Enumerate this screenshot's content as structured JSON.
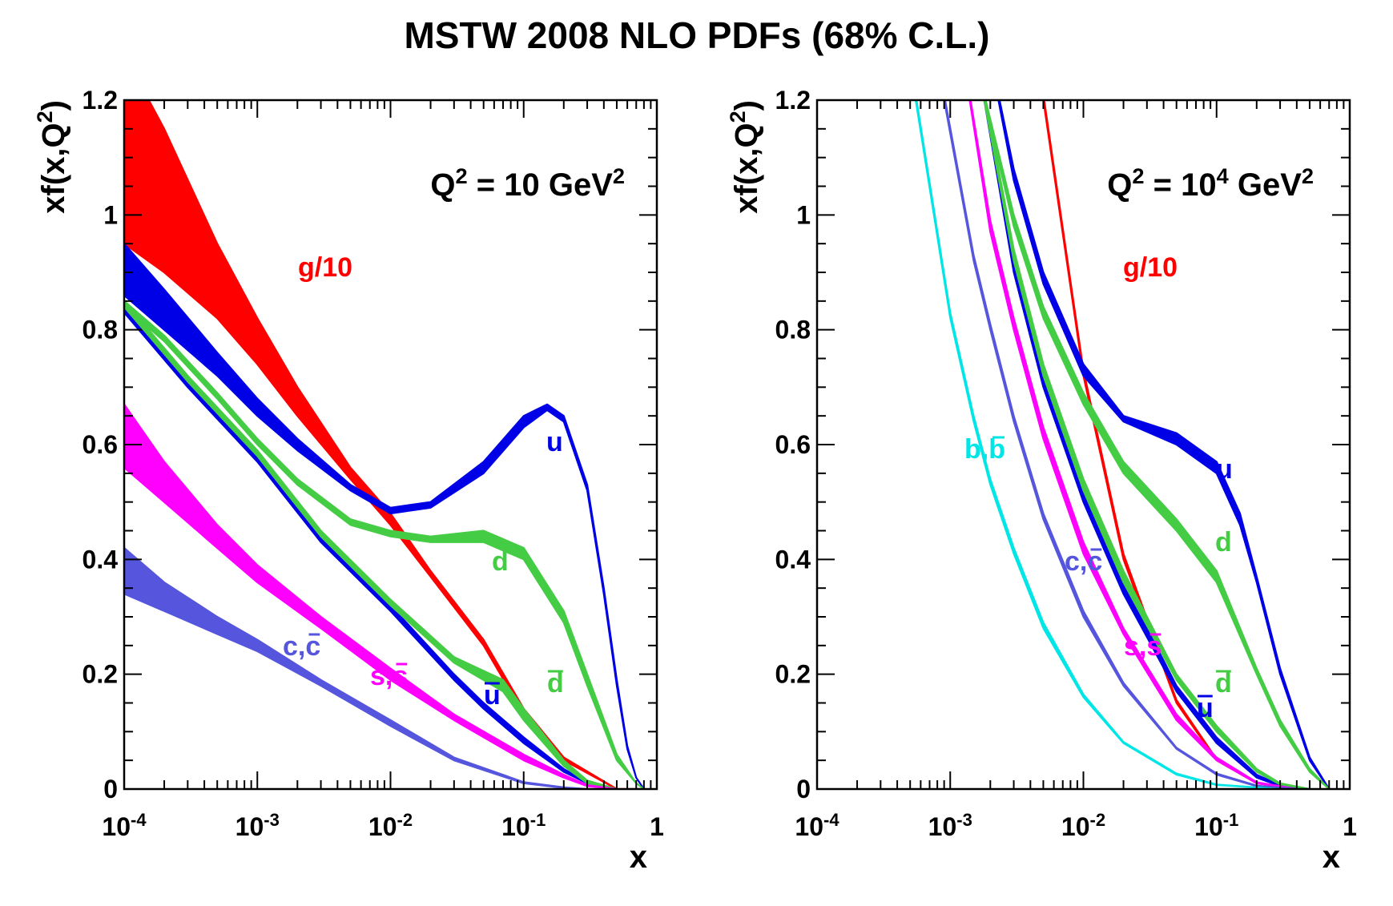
{
  "title": "MSTW 2008 NLO PDFs (68% C.L.)",
  "colors": {
    "g": "#ff0000",
    "u": "#0000e6",
    "d": "#44cc44",
    "ubar": "#0000e6",
    "dbar": "#44cc44",
    "s": "#ff00ff",
    "c": "#5555dd",
    "b": "#00e6e6"
  },
  "chart_data": [
    {
      "type": "line",
      "title": "",
      "annotation": {
        "main": "Q",
        "sup1": "2",
        "mid": " = 10 GeV",
        "sup2": "2"
      },
      "xlabel": "x",
      "ylabel": {
        "main": "xf(x,Q",
        "sup": "2",
        "end": ")"
      },
      "xscale": "log",
      "xlim": [
        0.0001,
        1
      ],
      "ylim": [
        0,
        1.2
      ],
      "x_ticks": [
        {
          "base": "10",
          "exp": "-4"
        },
        {
          "base": "10",
          "exp": "-3"
        },
        {
          "base": "10",
          "exp": "-2"
        },
        {
          "base": "10",
          "exp": "-1"
        },
        {
          "base": "1",
          "exp": ""
        }
      ],
      "y_ticks": [
        "0",
        "0.2",
        "0.4",
        "0.6",
        "0.8",
        "1",
        "1.2"
      ],
      "series": [
        {
          "key": "g",
          "name": "g/10",
          "label": {
            "text": "g/10",
            "bar": ""
          },
          "x": [
            0.0001,
            0.0002,
            0.0005,
            0.001,
            0.002,
            0.005,
            0.01,
            0.02,
            0.05,
            0.1,
            0.2,
            0.5,
            0.8
          ],
          "lo": [
            0.95,
            0.9,
            0.82,
            0.74,
            0.65,
            0.54,
            0.46,
            0.37,
            0.25,
            0.13,
            0.05,
            0.0,
            0.0
          ],
          "hi": [
            1.28,
            1.15,
            0.95,
            0.82,
            0.7,
            0.56,
            0.48,
            0.38,
            0.26,
            0.14,
            0.055,
            0.0,
            0.0
          ]
        },
        {
          "key": "u",
          "name": "u",
          "label": {
            "text": "u",
            "bar": ""
          },
          "x": [
            0.0001,
            0.0002,
            0.0005,
            0.001,
            0.002,
            0.005,
            0.01,
            0.02,
            0.05,
            0.1,
            0.15,
            0.2,
            0.3,
            0.4,
            0.5,
            0.6,
            0.7,
            0.8
          ],
          "lo": [
            0.86,
            0.8,
            0.72,
            0.65,
            0.59,
            0.52,
            0.48,
            0.49,
            0.55,
            0.63,
            0.66,
            0.64,
            0.52,
            0.34,
            0.18,
            0.07,
            0.02,
            0.0
          ],
          "hi": [
            0.95,
            0.87,
            0.76,
            0.68,
            0.61,
            0.53,
            0.49,
            0.5,
            0.57,
            0.65,
            0.67,
            0.65,
            0.53,
            0.35,
            0.19,
            0.075,
            0.02,
            0.0
          ]
        },
        {
          "key": "d",
          "name": "d",
          "label": {
            "text": "d",
            "bar": ""
          },
          "x": [
            0.0001,
            0.0002,
            0.0005,
            0.001,
            0.002,
            0.005,
            0.01,
            0.02,
            0.05,
            0.1,
            0.2,
            0.3,
            0.5,
            0.7,
            0.8
          ],
          "lo": [
            0.84,
            0.78,
            0.68,
            0.6,
            0.53,
            0.46,
            0.44,
            0.43,
            0.43,
            0.4,
            0.29,
            0.18,
            0.05,
            0.01,
            0.0
          ],
          "hi": [
            0.85,
            0.79,
            0.69,
            0.61,
            0.54,
            0.47,
            0.45,
            0.44,
            0.45,
            0.42,
            0.31,
            0.2,
            0.06,
            0.01,
            0.0
          ]
        },
        {
          "key": "ubar",
          "name": "u",
          "label": {
            "text": "u",
            "bar": "u"
          },
          "x": [
            0.0001,
            0.0003,
            0.001,
            0.003,
            0.01,
            0.03,
            0.05,
            0.1,
            0.2,
            0.3,
            0.5
          ],
          "lo": [
            0.83,
            0.7,
            0.57,
            0.43,
            0.31,
            0.19,
            0.14,
            0.08,
            0.03,
            0.01,
            0.0
          ],
          "hi": [
            0.84,
            0.71,
            0.58,
            0.44,
            0.32,
            0.2,
            0.15,
            0.09,
            0.035,
            0.012,
            0.0
          ]
        },
        {
          "key": "dbar",
          "name": "d",
          "label": {
            "text": "d",
            "bar": "d"
          },
          "x": [
            0.0001,
            0.0003,
            0.001,
            0.003,
            0.01,
            0.03,
            0.07,
            0.1,
            0.2,
            0.3,
            0.5
          ],
          "lo": [
            0.84,
            0.71,
            0.58,
            0.44,
            0.32,
            0.22,
            0.17,
            0.12,
            0.04,
            0.01,
            0.0
          ],
          "hi": [
            0.85,
            0.72,
            0.59,
            0.45,
            0.33,
            0.23,
            0.19,
            0.14,
            0.05,
            0.015,
            0.0
          ]
        },
        {
          "key": "s",
          "name": "s,s",
          "label": {
            "text": "s,s",
            "bar": "s"
          },
          "x": [
            0.0001,
            0.0002,
            0.0005,
            0.001,
            0.003,
            0.01,
            0.03,
            0.1,
            0.2,
            0.3,
            0.5
          ],
          "lo": [
            0.56,
            0.5,
            0.42,
            0.36,
            0.28,
            0.19,
            0.12,
            0.05,
            0.02,
            0.005,
            0.0
          ],
          "hi": [
            0.67,
            0.57,
            0.46,
            0.39,
            0.3,
            0.21,
            0.13,
            0.06,
            0.025,
            0.007,
            0.0
          ]
        },
        {
          "key": "c",
          "name": "c,c",
          "label": {
            "text": "c,c",
            "bar": "c"
          },
          "x": [
            0.0001,
            0.0002,
            0.0005,
            0.001,
            0.003,
            0.01,
            0.03,
            0.1,
            0.2,
            0.3
          ],
          "lo": [
            0.34,
            0.31,
            0.27,
            0.24,
            0.18,
            0.11,
            0.05,
            0.01,
            0.002,
            0.0
          ],
          "hi": [
            0.42,
            0.36,
            0.3,
            0.26,
            0.19,
            0.12,
            0.055,
            0.012,
            0.003,
            0.0
          ]
        }
      ]
    },
    {
      "type": "line",
      "title": "",
      "annotation": {
        "main": "Q",
        "sup1": "2",
        "mid": " = 10",
        "sup2": "4",
        "end": " GeV",
        "sup3": "2"
      },
      "xlabel": "x",
      "ylabel": {
        "main": "xf(x,Q",
        "sup": "2",
        "end": ")"
      },
      "xscale": "log",
      "xlim": [
        0.0001,
        1
      ],
      "ylim": [
        0,
        1.2
      ],
      "x_ticks": [
        {
          "base": "10",
          "exp": "-4"
        },
        {
          "base": "10",
          "exp": "-3"
        },
        {
          "base": "10",
          "exp": "-2"
        },
        {
          "base": "10",
          "exp": "-1"
        },
        {
          "base": "1",
          "exp": ""
        }
      ],
      "y_ticks": [
        "0",
        "0.2",
        "0.4",
        "0.6",
        "0.8",
        "1",
        "1.2"
      ],
      "series": [
        {
          "key": "g",
          "name": "g/10",
          "label": {
            "text": "g/10",
            "bar": ""
          },
          "x": [
            0.005,
            0.01,
            0.02,
            0.05,
            0.1,
            0.2,
            0.4
          ],
          "lo": [
            1.2,
            0.72,
            0.4,
            0.15,
            0.05,
            0.01,
            0.0
          ],
          "hi": [
            1.21,
            0.73,
            0.41,
            0.155,
            0.052,
            0.011,
            0.0
          ]
        },
        {
          "key": "u",
          "name": "u",
          "label": {
            "text": "u",
            "bar": ""
          },
          "x": [
            0.0023,
            0.003,
            0.005,
            0.01,
            0.02,
            0.05,
            0.1,
            0.15,
            0.2,
            0.3,
            0.5,
            0.7
          ],
          "lo": [
            1.2,
            1.06,
            0.88,
            0.72,
            0.64,
            0.6,
            0.55,
            0.46,
            0.36,
            0.2,
            0.05,
            0.0
          ],
          "hi": [
            1.21,
            1.08,
            0.9,
            0.74,
            0.65,
            0.62,
            0.57,
            0.48,
            0.37,
            0.21,
            0.055,
            0.0
          ]
        },
        {
          "key": "d",
          "name": "d",
          "label": {
            "text": "d",
            "bar": ""
          },
          "x": [
            0.0018,
            0.003,
            0.005,
            0.01,
            0.02,
            0.05,
            0.1,
            0.2,
            0.3,
            0.5,
            0.7
          ],
          "lo": [
            1.2,
            0.98,
            0.82,
            0.67,
            0.55,
            0.45,
            0.36,
            0.2,
            0.11,
            0.03,
            0.0
          ],
          "hi": [
            1.21,
            1.0,
            0.84,
            0.69,
            0.57,
            0.47,
            0.38,
            0.21,
            0.12,
            0.035,
            0.0
          ]
        },
        {
          "key": "ubar",
          "name": "u",
          "label": {
            "text": "u",
            "bar": "u"
          },
          "x": [
            0.0018,
            0.003,
            0.005,
            0.01,
            0.02,
            0.05,
            0.1,
            0.2,
            0.3,
            0.5
          ],
          "lo": [
            1.2,
            0.9,
            0.7,
            0.5,
            0.34,
            0.17,
            0.08,
            0.02,
            0.005,
            0.0
          ],
          "hi": [
            1.21,
            0.92,
            0.72,
            0.52,
            0.36,
            0.18,
            0.09,
            0.025,
            0.007,
            0.0
          ]
        },
        {
          "key": "dbar",
          "name": "d",
          "label": {
            "text": "d",
            "bar": "d"
          },
          "x": [
            0.0018,
            0.003,
            0.005,
            0.01,
            0.02,
            0.05,
            0.1,
            0.2,
            0.3,
            0.5
          ],
          "lo": [
            1.2,
            0.92,
            0.72,
            0.52,
            0.36,
            0.19,
            0.1,
            0.03,
            0.008,
            0.0
          ],
          "hi": [
            1.21,
            0.94,
            0.74,
            0.54,
            0.38,
            0.2,
            0.11,
            0.035,
            0.01,
            0.0
          ]
        },
        {
          "key": "s",
          "name": "s,s",
          "label": {
            "text": "s,s",
            "bar": "s"
          },
          "x": [
            0.0014,
            0.002,
            0.003,
            0.005,
            0.01,
            0.02,
            0.05,
            0.1,
            0.2,
            0.4
          ],
          "lo": [
            1.2,
            0.97,
            0.8,
            0.61,
            0.41,
            0.27,
            0.12,
            0.05,
            0.01,
            0.0
          ],
          "hi": [
            1.21,
            0.99,
            0.82,
            0.63,
            0.43,
            0.28,
            0.13,
            0.055,
            0.012,
            0.0
          ]
        },
        {
          "key": "c",
          "name": "c,c",
          "label": {
            "text": "c,c",
            "bar": "c"
          },
          "x": [
            0.0009,
            0.0015,
            0.002,
            0.003,
            0.005,
            0.01,
            0.02,
            0.05,
            0.1,
            0.2,
            0.4
          ],
          "lo": [
            1.2,
            0.92,
            0.8,
            0.64,
            0.47,
            0.3,
            0.18,
            0.07,
            0.025,
            0.005,
            0.0
          ],
          "hi": [
            1.21,
            0.93,
            0.81,
            0.65,
            0.48,
            0.31,
            0.185,
            0.072,
            0.027,
            0.006,
            0.0
          ]
        },
        {
          "key": "b",
          "name": "b,b",
          "label": {
            "text": "b,b",
            "bar": "b"
          },
          "x": [
            0.00055,
            0.001,
            0.0015,
            0.002,
            0.003,
            0.005,
            0.01,
            0.02,
            0.05,
            0.1,
            0.3
          ],
          "lo": [
            1.2,
            0.82,
            0.64,
            0.53,
            0.41,
            0.28,
            0.16,
            0.08,
            0.025,
            0.007,
            0.0
          ],
          "hi": [
            1.21,
            0.83,
            0.65,
            0.54,
            0.42,
            0.29,
            0.165,
            0.082,
            0.027,
            0.008,
            0.0
          ]
        }
      ]
    }
  ]
}
